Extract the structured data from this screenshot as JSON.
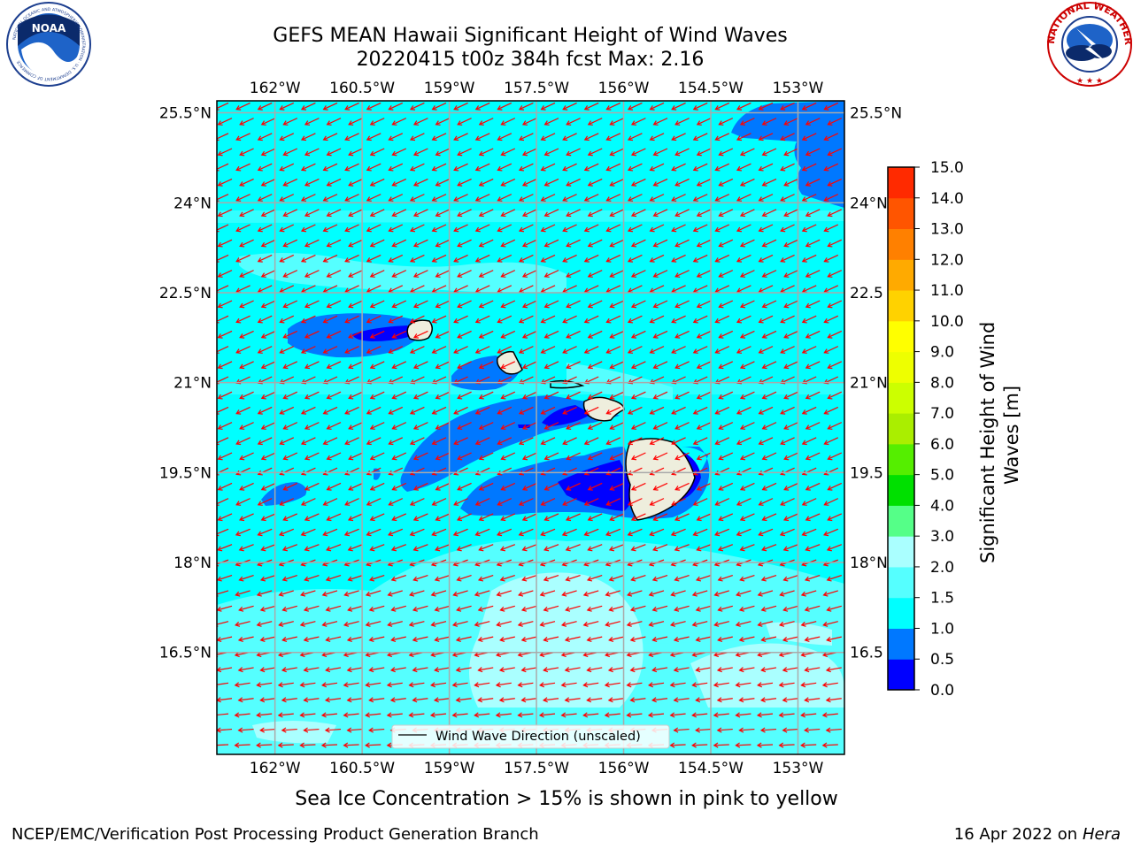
{
  "header": {
    "title_line1": "GEFS MEAN Hawaii Significant Height of Wind Waves",
    "title_line2": "20220415 t00z 384h fcst   Max: 2.16"
  },
  "logos": {
    "noaa_text": "NOAA",
    "noaa_ring_text": "NATIONAL OCEANIC AND ATMOSPHERIC ADMINISTRATION · U.S. DEPARTMENT OF COMMERCE",
    "nws_ring_text": "NATIONAL WEATHER SERVICE",
    "noaa_icon": "noaa-logo",
    "nws_icon": "nws-logo"
  },
  "map": {
    "lon_ticks": [
      "162°W",
      "160.5°W",
      "159°W",
      "157.5°W",
      "156°W",
      "154.5°W",
      "153°W"
    ],
    "lon_values": [
      -162,
      -160.5,
      -159,
      -157.5,
      -156,
      -154.5,
      -153
    ],
    "lat_ticks_left": [
      "25.5°N",
      "24°N",
      "22.5°N",
      "21°N",
      "19.5°N",
      "18°N",
      "16.5°N"
    ],
    "lat_ticks_right": [
      "25.5°N",
      "24°N",
      "22.5",
      "21°N",
      "19.5",
      "18°N",
      "16.5"
    ],
    "lat_values": [
      25.5,
      24,
      22.5,
      21,
      19.5,
      18,
      16.5
    ],
    "lon_range": [
      -163,
      -152.2
    ],
    "lat_range": [
      14.8,
      25.7
    ],
    "ocean_color": "#00ffff",
    "arrow_color": "#ff0000",
    "land_color": "#eeeedd",
    "legend_label": "Wind Wave Direction (unscaled)"
  },
  "colorbar": {
    "label_line1": "Significant Height of Wind",
    "label_line2": "Waves [m]",
    "ticks": [
      "0.0",
      "0.5",
      "1.0",
      "1.5",
      "2.0",
      "3.0",
      "4.0",
      "5.0",
      "6.0",
      "7.0",
      "8.0",
      "9.0",
      "10.0",
      "11.0",
      "12.0",
      "13.0",
      "14.0",
      "15.0"
    ],
    "colors": [
      "#0000ff",
      "#0078ff",
      "#00ffff",
      "#55ffff",
      "#aaffff",
      "#55ff88",
      "#00e000",
      "#55ee00",
      "#aaee00",
      "#ccff00",
      "#eeff00",
      "#ffff00",
      "#ffd200",
      "#ffaa00",
      "#ff8000",
      "#ff5500",
      "#ff2a00",
      "#ff0000"
    ]
  },
  "footer": {
    "subtitle": "Sea Ice Concentration > 15% is shown in pink to yellow",
    "credit": "NCEP/EMC/Verification Post Processing Product Generation Branch",
    "date": "16 Apr 2022 on",
    "host": "Hera"
  }
}
